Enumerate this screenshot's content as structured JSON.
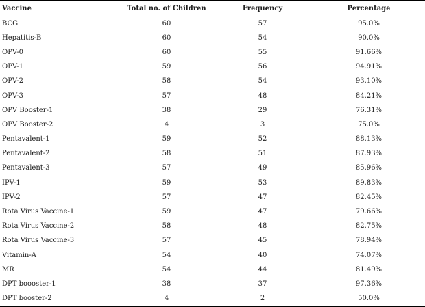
{
  "table": {
    "headers": [
      "Vaccine",
      "Total no. of Children",
      "Frequency",
      "Percentage"
    ],
    "rows": [
      {
        "vaccine": "BCG",
        "total": "60",
        "frequency": "57",
        "percentage": "95.0%"
      },
      {
        "vaccine": "Hepatitis-B",
        "total": "60",
        "frequency": "54",
        "percentage": "90.0%"
      },
      {
        "vaccine": "OPV-0",
        "total": "60",
        "frequency": "55",
        "percentage": "91.66%"
      },
      {
        "vaccine": "OPV-1",
        "total": "59",
        "frequency": "56",
        "percentage": "94.91%"
      },
      {
        "vaccine": "OPV-2",
        "total": "58",
        "frequency": "54",
        "percentage": "93.10%"
      },
      {
        "vaccine": "OPV-3",
        "total": "57",
        "frequency": "48",
        "percentage": "84.21%"
      },
      {
        "vaccine": "OPV Booster-1",
        "total": "38",
        "frequency": "29",
        "percentage": "76.31%"
      },
      {
        "vaccine": "OPV Booster-2",
        "total": "4",
        "frequency": "3",
        "percentage": "75.0%"
      },
      {
        "vaccine": "Pentavalent-1",
        "total": "59",
        "frequency": "52",
        "percentage": "88.13%"
      },
      {
        "vaccine": "Pentavalent-2",
        "total": "58",
        "frequency": "51",
        "percentage": "87.93%"
      },
      {
        "vaccine": "Pentavalent-3",
        "total": "57",
        "frequency": "49",
        "percentage": "85.96%"
      },
      {
        "vaccine": "IPV-1",
        "total": "59",
        "frequency": "53",
        "percentage": "89.83%"
      },
      {
        "vaccine": "IPV-2",
        "total": "57",
        "frequency": "47",
        "percentage": "82.45%"
      },
      {
        "vaccine": "Rota Virus Vaccine-1",
        "total": "59",
        "frequency": "47",
        "percentage": "79.66%"
      },
      {
        "vaccine": "Rota Virus Vaccine-2",
        "total": "58",
        "frequency": "48",
        "percentage": "82.75%"
      },
      {
        "vaccine": "Rota Virus Vaccine-3",
        "total": "57",
        "frequency": "45",
        "percentage": "78.94%"
      },
      {
        "vaccine": "Vitamin-A",
        "total": "54",
        "frequency": "40",
        "percentage": "74.07%"
      },
      {
        "vaccine": "MR",
        "total": "54",
        "frequency": "44",
        "percentage": "81.49%"
      },
      {
        "vaccine": "DPT boooster-1",
        "total": "38",
        "frequency": "37",
        "percentage": "97.36%"
      },
      {
        "vaccine": "DPT booster-2",
        "total": "4",
        "frequency": "2",
        "percentage": "50.0%"
      }
    ]
  }
}
